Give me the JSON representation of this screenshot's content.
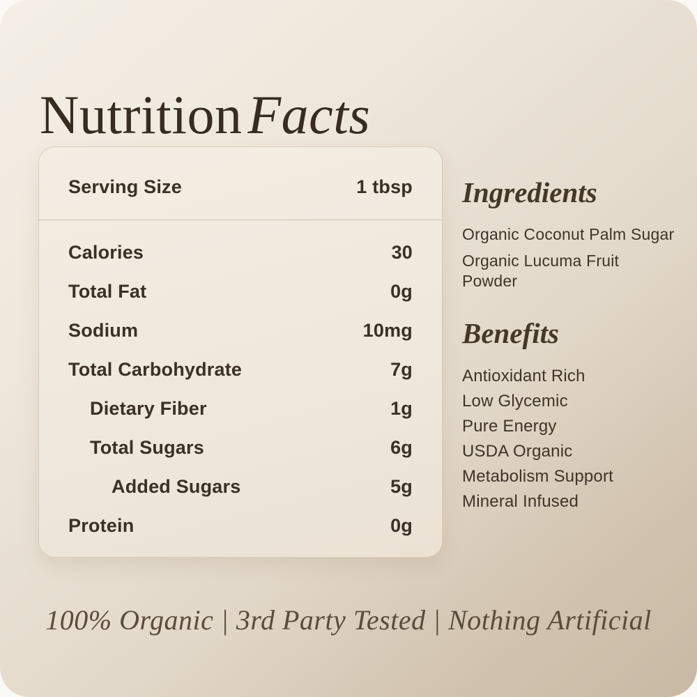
{
  "title": {
    "regular": "Nutrition",
    "italic": "Facts"
  },
  "panel": {
    "serving": {
      "label": "Serving Size",
      "value": "1 tbsp"
    },
    "rows": [
      {
        "label": "Calories",
        "value": "30",
        "indent": 0
      },
      {
        "label": "Total Fat",
        "value": "0g",
        "indent": 0
      },
      {
        "label": "Sodium",
        "value": "10mg",
        "indent": 0
      },
      {
        "label": "Total Carbohydrate",
        "value": "7g",
        "indent": 0
      },
      {
        "label": "Dietary Fiber",
        "value": "1g",
        "indent": 1
      },
      {
        "label": "Total Sugars",
        "value": "6g",
        "indent": 1
      },
      {
        "label": "Added Sugars",
        "value": "5g",
        "indent": 2
      },
      {
        "label": "Protein",
        "value": "0g",
        "indent": 0
      }
    ]
  },
  "ingredients": {
    "heading": "Ingredients",
    "items": [
      "Organic Coconut Palm Sugar",
      "Organic Lucuma Fruit Powder"
    ]
  },
  "benefits": {
    "heading": "Benefits",
    "items": [
      "Antioxidant Rich",
      "Low Glycemic",
      "Pure Energy",
      "USDA Organic",
      "Metabolism Support",
      "Mineral Infused"
    ]
  },
  "footer": {
    "tagline": "100% Organic | 3rd Party Tested | Nothing Artificial"
  },
  "colors": {
    "card_gradient_start": "#f4efe7",
    "card_gradient_end": "#c7b9a4",
    "panel_background": "#f1ebe1",
    "panel_border": "#d8cdbc",
    "divider": "#ccc2b2",
    "text_dark": "#3a3025",
    "heading_serif": "#443827",
    "tagline": "#5a4b3a"
  }
}
